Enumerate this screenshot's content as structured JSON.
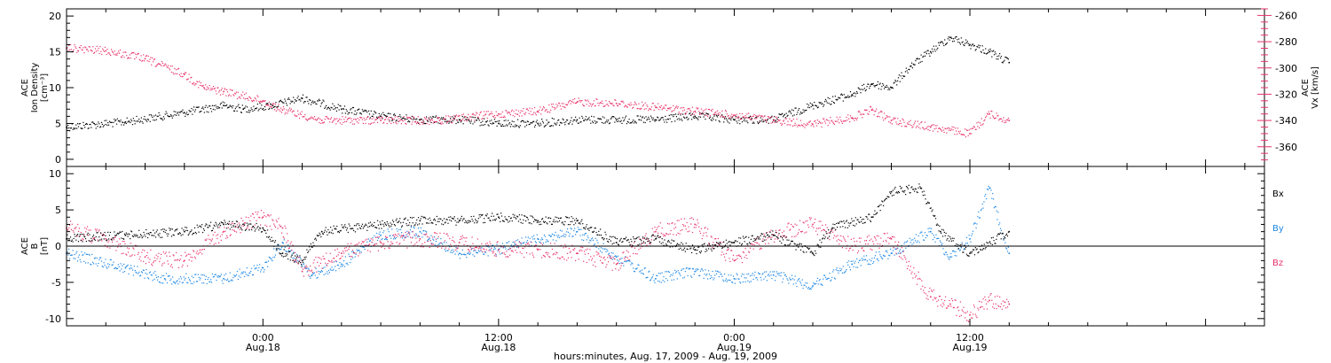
{
  "figure": {
    "xlabel": "hours:minutes, Aug. 17, 2009 - Aug. 19, 2009"
  },
  "colors": {
    "black": "#000000",
    "pink": "#e8336b",
    "blue": "#1e88e5"
  },
  "chart_data": [
    {
      "type": "scatter",
      "panel": "top",
      "ylabel_left": [
        "ACE",
        "Ion Density",
        "[cm⁻³]"
      ],
      "ylabel_right": [
        "ACE",
        "Vx [km/s]"
      ],
      "x_ticks": [
        {
          "time": "2009-08-18T00:00",
          "label": "0:00",
          "sublabel": "Aug.18"
        },
        {
          "time": "2009-08-18T12:00",
          "label": "12:00",
          "sublabel": "Aug.18"
        },
        {
          "time": "2009-08-19T00:00",
          "label": "0:00",
          "sublabel": "Aug.19"
        },
        {
          "time": "2009-08-19T12:00",
          "label": "12:00",
          "sublabel": "Aug.19"
        }
      ],
      "xlim": [
        "2009-08-17T14:00",
        "2009-08-20T03:00"
      ],
      "ylim_left": [
        -1,
        21
      ],
      "yticks_left": [
        0,
        5,
        10,
        15,
        20
      ],
      "ylim_right": [
        -375,
        -255
      ],
      "yticks_right": [
        -360,
        -340,
        -320,
        -300,
        -280,
        -260
      ],
      "series": [
        {
          "name": "Ion Density",
          "axis": "left",
          "color": "#000000",
          "points": [
            [
              "2009-08-17T14:00",
              4.5
            ],
            [
              "2009-08-17T17:00",
              5.2
            ],
            [
              "2009-08-17T20:00",
              6.5
            ],
            [
              "2009-08-17T22:00",
              7.5
            ],
            [
              "2009-08-17T23:00",
              7.0
            ],
            [
              "2009-08-18T00:30",
              7.5
            ],
            [
              "2009-08-18T02:00",
              8.5
            ],
            [
              "2009-08-18T04:00",
              7.0
            ],
            [
              "2009-08-18T06:00",
              6.0
            ],
            [
              "2009-08-18T08:00",
              5.5
            ],
            [
              "2009-08-18T10:00",
              5.5
            ],
            [
              "2009-08-18T12:00",
              5.0
            ],
            [
              "2009-08-18T14:00",
              5.0
            ],
            [
              "2009-08-18T16:00",
              5.5
            ],
            [
              "2009-08-18T18:00",
              5.5
            ],
            [
              "2009-08-18T20:00",
              5.5
            ],
            [
              "2009-08-18T22:00",
              6.0
            ],
            [
              "2009-08-19T00:00",
              5.5
            ],
            [
              "2009-08-19T02:00",
              5.5
            ],
            [
              "2009-08-19T04:00",
              7.5
            ],
            [
              "2009-08-19T06:00",
              9.0
            ],
            [
              "2009-08-19T07:00",
              10.5
            ],
            [
              "2009-08-19T08:00",
              10.0
            ],
            [
              "2009-08-19T09:00",
              13.0
            ],
            [
              "2009-08-19T10:00",
              15.0
            ],
            [
              "2009-08-19T11:00",
              17.0
            ],
            [
              "2009-08-19T12:00",
              16.0
            ],
            [
              "2009-08-19T13:00",
              15.0
            ],
            [
              "2009-08-19T14:00",
              13.5
            ]
          ]
        },
        {
          "name": "Vx",
          "axis": "right",
          "color": "#e8336b",
          "points": [
            [
              "2009-08-17T14:00",
              -285
            ],
            [
              "2009-08-17T16:00",
              -287
            ],
            [
              "2009-08-17T18:00",
              -293
            ],
            [
              "2009-08-17T20:00",
              -305
            ],
            [
              "2009-08-17T21:00",
              -315
            ],
            [
              "2009-08-17T22:00",
              -318
            ],
            [
              "2009-08-18T00:00",
              -325
            ],
            [
              "2009-08-18T01:00",
              -332
            ],
            [
              "2009-08-18T03:00",
              -340
            ],
            [
              "2009-08-18T06:00",
              -340
            ],
            [
              "2009-08-18T09:00",
              -340
            ],
            [
              "2009-08-18T12:00",
              -335
            ],
            [
              "2009-08-18T14:00",
              -333
            ],
            [
              "2009-08-18T16:00",
              -326
            ],
            [
              "2009-08-18T18:00",
              -327
            ],
            [
              "2009-08-18T20:00",
              -330
            ],
            [
              "2009-08-18T22:00",
              -333
            ],
            [
              "2009-08-19T00:00",
              -336
            ],
            [
              "2009-08-19T02:00",
              -340
            ],
            [
              "2009-08-19T04:00",
              -343
            ],
            [
              "2009-08-19T06:00",
              -338
            ],
            [
              "2009-08-19T07:00",
              -332
            ],
            [
              "2009-08-19T08:00",
              -340
            ],
            [
              "2009-08-19T10:00",
              -345
            ],
            [
              "2009-08-19T12:00",
              -350
            ],
            [
              "2009-08-19T13:00",
              -335
            ],
            [
              "2009-08-19T14:00",
              -340
            ]
          ]
        }
      ]
    },
    {
      "type": "scatter",
      "panel": "bottom",
      "ylabel_left": [
        "ACE",
        "B",
        "[nT]"
      ],
      "xlim": [
        "2009-08-17T14:00",
        "2009-08-20T03:00"
      ],
      "ylim": [
        -11,
        11
      ],
      "yticks": [
        -10,
        -5,
        0,
        5,
        10
      ],
      "zero_line": true,
      "legend": [
        {
          "label": "Bx",
          "color": "#000000"
        },
        {
          "label": "By",
          "color": "#1e88e5"
        },
        {
          "label": "Bz",
          "color": "#e8336b"
        }
      ],
      "series": [
        {
          "name": "Bx",
          "color": "#000000",
          "points": [
            [
              "2009-08-17T14:00",
              1.0
            ],
            [
              "2009-08-17T17:00",
              1.5
            ],
            [
              "2009-08-17T20:00",
              2.0
            ],
            [
              "2009-08-17T22:00",
              3.0
            ],
            [
              "2009-08-18T00:00",
              2.5
            ],
            [
              "2009-08-18T01:00",
              -1.0
            ],
            [
              "2009-08-18T02:00",
              -2.0
            ],
            [
              "2009-08-18T03:00",
              2.0
            ],
            [
              "2009-08-18T06:00",
              3.0
            ],
            [
              "2009-08-18T08:00",
              3.5
            ],
            [
              "2009-08-18T10:00",
              3.5
            ],
            [
              "2009-08-18T12:00",
              4.0
            ],
            [
              "2009-08-18T14:00",
              3.5
            ],
            [
              "2009-08-18T16:00",
              3.5
            ],
            [
              "2009-08-18T18:00",
              0.5
            ],
            [
              "2009-08-18T20:00",
              1.0
            ],
            [
              "2009-08-18T22:00",
              -0.5
            ],
            [
              "2009-08-19T00:00",
              0.5
            ],
            [
              "2009-08-19T02:00",
              1.5
            ],
            [
              "2009-08-19T04:00",
              -1.0
            ],
            [
              "2009-08-19T05:00",
              2.5
            ],
            [
              "2009-08-19T07:00",
              4.0
            ],
            [
              "2009-08-19T08:00",
              7.5
            ],
            [
              "2009-08-19T09:30",
              8.0
            ],
            [
              "2009-08-19T10:30",
              2.0
            ],
            [
              "2009-08-19T12:00",
              -1.0
            ],
            [
              "2009-08-19T14:00",
              2.0
            ]
          ]
        },
        {
          "name": "By",
          "color": "#1e88e5",
          "points": [
            [
              "2009-08-17T14:00",
              -1.0
            ],
            [
              "2009-08-17T17:00",
              -3.0
            ],
            [
              "2009-08-17T19:00",
              -4.5
            ],
            [
              "2009-08-17T22:00",
              -4.5
            ],
            [
              "2009-08-18T00:00",
              -3.0
            ],
            [
              "2009-08-18T01:00",
              0.5
            ],
            [
              "2009-08-18T02:30",
              -4.0
            ],
            [
              "2009-08-18T04:00",
              -2.5
            ],
            [
              "2009-08-18T06:00",
              1.5
            ],
            [
              "2009-08-18T08:00",
              2.0
            ],
            [
              "2009-08-18T10:00",
              -1.0
            ],
            [
              "2009-08-18T12:00",
              -0.5
            ],
            [
              "2009-08-18T14:00",
              1.0
            ],
            [
              "2009-08-18T16:00",
              2.0
            ],
            [
              "2009-08-18T18:00",
              -1.5
            ],
            [
              "2009-08-18T20:00",
              -4.5
            ],
            [
              "2009-08-18T22:00",
              -3.5
            ],
            [
              "2009-08-19T00:00",
              -4.5
            ],
            [
              "2009-08-19T02:00",
              -4.0
            ],
            [
              "2009-08-19T04:00",
              -5.5
            ],
            [
              "2009-08-19T06:00",
              -2.5
            ],
            [
              "2009-08-19T08:00",
              -1.0
            ],
            [
              "2009-08-19T10:00",
              2.0
            ],
            [
              "2009-08-19T11:00",
              -1.5
            ],
            [
              "2009-08-19T12:00",
              1.0
            ],
            [
              "2009-08-19T13:00",
              8.0
            ],
            [
              "2009-08-19T14:00",
              -1.0
            ]
          ]
        },
        {
          "name": "Bz",
          "color": "#e8336b",
          "points": [
            [
              "2009-08-17T14:00",
              2.5
            ],
            [
              "2009-08-17T16:00",
              1.0
            ],
            [
              "2009-08-17T18:00",
              -1.5
            ],
            [
              "2009-08-17T20:00",
              -2.0
            ],
            [
              "2009-08-17T22:00",
              2.0
            ],
            [
              "2009-08-18T00:00",
              4.0
            ],
            [
              "2009-08-18T01:00",
              2.5
            ],
            [
              "2009-08-18T02:00",
              -3.5
            ],
            [
              "2009-08-18T04:00",
              -1.0
            ],
            [
              "2009-08-18T06:00",
              0.5
            ],
            [
              "2009-08-18T08:00",
              1.0
            ],
            [
              "2009-08-18T10:00",
              0.5
            ],
            [
              "2009-08-18T12:00",
              -0.5
            ],
            [
              "2009-08-18T14:00",
              -0.5
            ],
            [
              "2009-08-18T16:00",
              -1.0
            ],
            [
              "2009-08-18T18:00",
              -2.5
            ],
            [
              "2009-08-18T20:00",
              2.0
            ],
            [
              "2009-08-18T22:00",
              3.0
            ],
            [
              "2009-08-19T00:00",
              -2.0
            ],
            [
              "2009-08-19T02:00",
              1.5
            ],
            [
              "2009-08-19T04:00",
              3.0
            ],
            [
              "2009-08-19T06:00",
              0.0
            ],
            [
              "2009-08-19T08:00",
              1.0
            ],
            [
              "2009-08-19T10:00",
              -7.0
            ],
            [
              "2009-08-19T11:00",
              -8.0
            ],
            [
              "2009-08-19T12:00",
              -9.5
            ],
            [
              "2009-08-19T13:00",
              -7.5
            ],
            [
              "2009-08-19T14:00",
              -8.0
            ]
          ]
        }
      ]
    }
  ]
}
